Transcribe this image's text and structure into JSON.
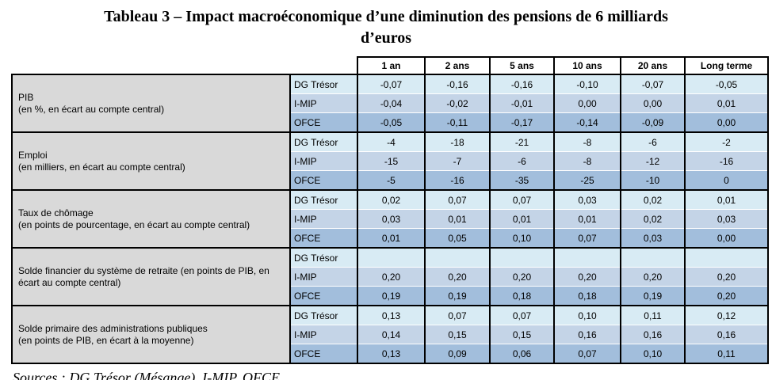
{
  "title": {
    "line1": "Tableau 3 – Impact macroéconomique d’une diminution des pensions de 6 milliards",
    "line2": "d’euros"
  },
  "colors": {
    "label_column_bg": "#D9D9D9",
    "row_dg_tresor_bg": "#D8EBF4",
    "row_imip_bg": "#C4D4E7",
    "row_ofce_bg": "#A2BEDC",
    "border": "#000000",
    "header_bg": "#FFFFFF"
  },
  "table": {
    "column_headers": [
      "1 an",
      "2 ans",
      "5 ans",
      "10 ans",
      "20 ans",
      "Long terme"
    ],
    "groups": [
      {
        "label_lines": [
          "PIB",
          "(en %, en écart au compte central)"
        ],
        "rows": [
          {
            "model": "DG Trésor",
            "values": [
              "-0,07",
              "-0,16",
              "-0,16",
              "-0,10",
              "-0,07",
              "-0,05"
            ]
          },
          {
            "model": "I-MIP",
            "values": [
              "-0,04",
              "-0,02",
              "-0,01",
              "0,00",
              "0,00",
              "0,01"
            ]
          },
          {
            "model": "OFCE",
            "values": [
              "-0,05",
              "-0,11",
              "-0,17",
              "-0,14",
              "-0,09",
              "0,00"
            ]
          }
        ]
      },
      {
        "label_lines": [
          "Emploi",
          "(en milliers, en écart au compte central)"
        ],
        "rows": [
          {
            "model": "DG Trésor",
            "values": [
              "-4",
              "-18",
              "-21",
              "-8",
              "-6",
              "-2"
            ]
          },
          {
            "model": "I-MIP",
            "values": [
              "-15",
              "-7",
              "-6",
              "-8",
              "-12",
              "-16"
            ]
          },
          {
            "model": "OFCE",
            "values": [
              "-5",
              "-16",
              "-35",
              "-25",
              "-10",
              "0"
            ]
          }
        ]
      },
      {
        "label_lines": [
          "Taux de chômage",
          "(en points de pourcentage, en écart au compte central)"
        ],
        "rows": [
          {
            "model": "DG Trésor",
            "values": [
              "0,02",
              "0,07",
              "0,07",
              "0,03",
              "0,02",
              "0,01"
            ]
          },
          {
            "model": "I-MIP",
            "values": [
              "0,03",
              "0,01",
              "0,01",
              "0,01",
              "0,02",
              "0,03"
            ]
          },
          {
            "model": "OFCE",
            "values": [
              "0,01",
              "0,05",
              "0,10",
              "0,07",
              "0,03",
              "0,00"
            ]
          }
        ]
      },
      {
        "label_lines": [
          "Solde financier du système de retraite (en points de PIB, en écart au compte central)"
        ],
        "rows": [
          {
            "model": "DG Trésor",
            "values": [
              "",
              "",
              "",
              "",
              "",
              ""
            ]
          },
          {
            "model": "I-MIP",
            "values": [
              "0,20",
              "0,20",
              "0,20",
              "0,20",
              "0,20",
              "0,20"
            ]
          },
          {
            "model": "OFCE",
            "values": [
              "0,19",
              "0,19",
              "0,18",
              "0,18",
              "0,19",
              "0,20"
            ]
          }
        ]
      },
      {
        "label_lines": [
          "Solde primaire des administrations publiques",
          "(en points de PIB, en écart à la moyenne)"
        ],
        "rows": [
          {
            "model": "DG Trésor",
            "values": [
              "0,13",
              "0,07",
              "0,07",
              "0,10",
              "0,11",
              "0,12"
            ]
          },
          {
            "model": "I-MIP",
            "values": [
              "0,14",
              "0,15",
              "0,15",
              "0,16",
              "0,16",
              "0,16"
            ]
          },
          {
            "model": "OFCE",
            "values": [
              "0,13",
              "0,09",
              "0,06",
              "0,07",
              "0,10",
              "0,11"
            ]
          }
        ]
      }
    ]
  },
  "sources": "Sources : DG Trésor (Mésange), I-MIP, OFCE."
}
